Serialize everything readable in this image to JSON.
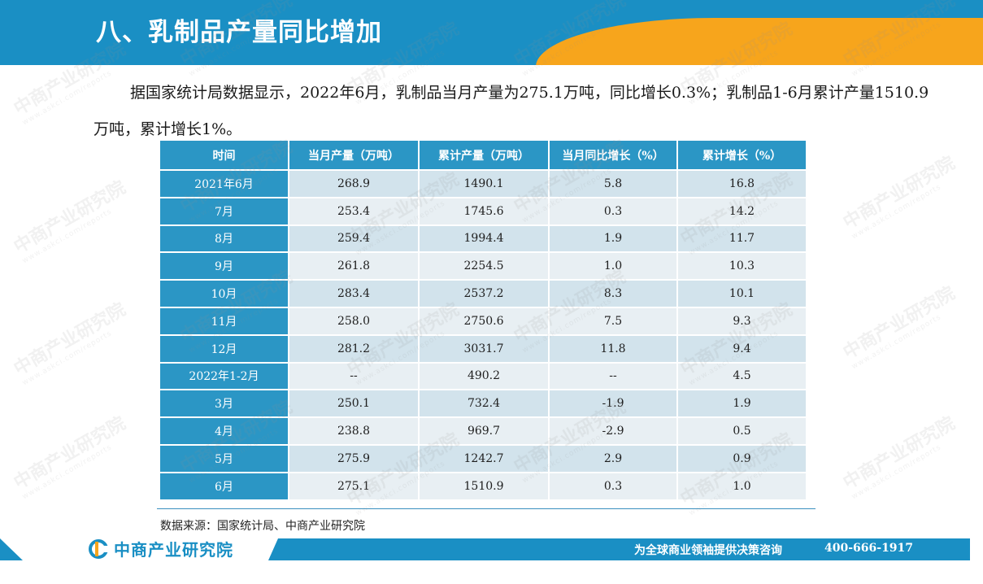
{
  "header": {
    "title": "八、乳制品产量同比增加"
  },
  "intro": {
    "text": "据国家统计局数据显示，2022年6月，乳制品当月产量为275.1万吨，同比增长0.3%；乳制品1-6月累计产量1510.9万吨，累计增长1%。"
  },
  "table": {
    "headers": [
      "时间",
      "当月产量（万吨）",
      "累计产量（万吨）",
      "当月同比增长（%）",
      "累计增长（%）"
    ],
    "rows": [
      [
        "2021年6月",
        "268.9",
        "1490.1",
        "5.8",
        "16.8"
      ],
      [
        "7月",
        "253.4",
        "1745.6",
        "0.3",
        "14.2"
      ],
      [
        "8月",
        "259.4",
        "1994.4",
        "1.9",
        "11.7"
      ],
      [
        "9月",
        "261.8",
        "2254.5",
        "1.0",
        "10.3"
      ],
      [
        "10月",
        "283.4",
        "2537.2",
        "8.3",
        "10.1"
      ],
      [
        "11月",
        "258.0",
        "2750.6",
        "7.5",
        "9.3"
      ],
      [
        "12月",
        "281.2",
        "3031.7",
        "11.8",
        "9.4"
      ],
      [
        "2022年1-2月",
        "--",
        "490.2",
        "--",
        "4.5"
      ],
      [
        "3月",
        "250.1",
        "732.4",
        "-1.9",
        "1.9"
      ],
      [
        "4月",
        "238.8",
        "969.7",
        "-2.9",
        "0.5"
      ],
      [
        "5月",
        "275.9",
        "1242.7",
        "2.9",
        "0.9"
      ],
      [
        "6月",
        "275.1",
        "1510.9",
        "0.3",
        "1.0"
      ]
    ]
  },
  "source": "数据来源：国家统计局、中商产业研究院",
  "footer": {
    "logo_text": "中商产业研究院",
    "slogan": "为全球商业领袖提供决策咨询",
    "phone": "400-666-1917"
  },
  "watermark": {
    "main": "中商产业研究院",
    "sub": "www.askci.com/reports"
  },
  "colors": {
    "brand_blue": "#1a8fc4",
    "accent_orange": "#f7a51c",
    "table_header": "#2b96c5",
    "row_light": "#e8eff3",
    "row_dark": "#d2e3ec"
  }
}
